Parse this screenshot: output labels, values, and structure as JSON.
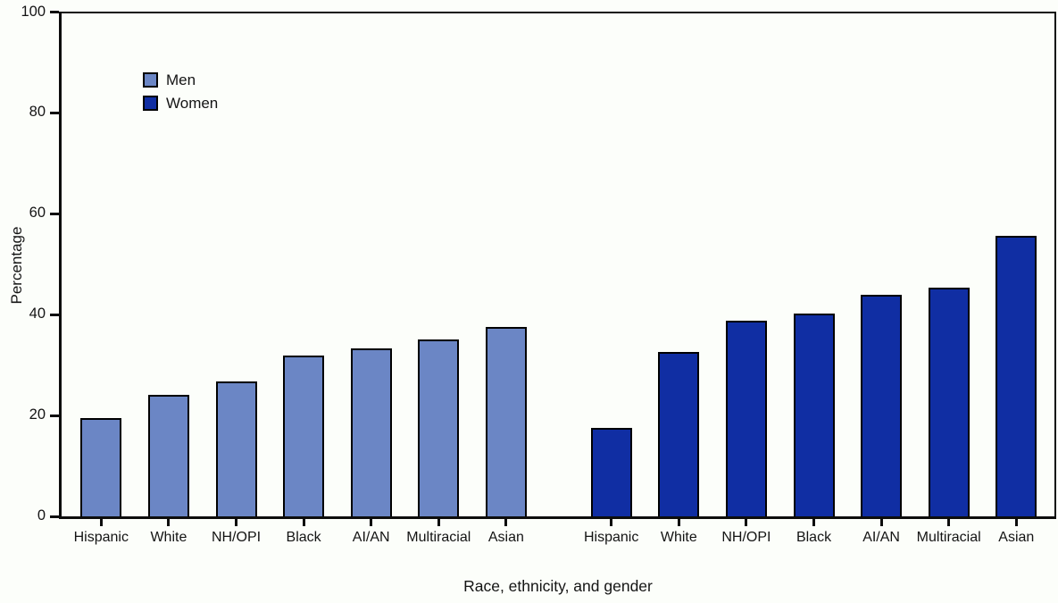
{
  "figure": {
    "background_color": "#FCFEFA",
    "axis_color": "#0d0d0d",
    "text_color": "#141414"
  },
  "legend": {
    "items": [
      {
        "label": "Men",
        "color": "#6B86C5"
      },
      {
        "label": "Women",
        "color": "#102EA3"
      }
    ]
  },
  "chart_data": {
    "type": "bar",
    "categories": [
      "Hispanic",
      "White",
      "NH/OPI",
      "Black",
      "AI/AN",
      "Multiracial",
      "Asian"
    ],
    "series": [
      {
        "name": "Men",
        "color": "#6B86C5",
        "values": [
          19.5,
          24.1,
          26.7,
          31.9,
          33.3,
          35.1,
          37.5
        ]
      },
      {
        "name": "Women",
        "color": "#102EA3",
        "values": [
          17.5,
          32.6,
          38.8,
          40.2,
          44.0,
          45.3,
          55.6
        ]
      }
    ],
    "title": "",
    "xlabel": "Race, ethnicity, and gender",
    "ylabel": "Percentage",
    "ylim": [
      0,
      100
    ],
    "yticks": [
      0,
      20,
      40,
      60,
      80,
      100
    ],
    "grid": false,
    "legend_position": "upper-left-inside",
    "layout_note": "two separate clusters (Men then Women); category labels repeated under each cluster"
  }
}
